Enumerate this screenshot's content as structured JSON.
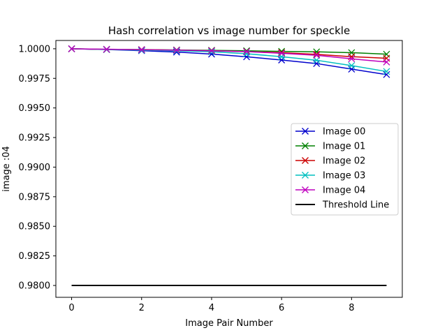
{
  "chart_data": {
    "type": "line",
    "title": "Hash correlation vs image number for speckle",
    "xlabel": "Image Pair Number",
    "ylabel": "image :04",
    "xlim": [
      -0.45,
      9.45
    ],
    "ylim": [
      0.979,
      1.0007
    ],
    "xticks": [
      0,
      2,
      4,
      6,
      8
    ],
    "xtick_labels": [
      "0",
      "2",
      "4",
      "6",
      "8"
    ],
    "yticks": [
      0.98,
      0.9825,
      0.985,
      0.9875,
      0.99,
      0.9925,
      0.995,
      0.9975,
      1.0
    ],
    "ytick_labels": [
      "0.9800",
      "0.9825",
      "0.9850",
      "0.9875",
      "0.9900",
      "0.9925",
      "0.9950",
      "0.9975",
      "1.0000"
    ],
    "grid": false,
    "legend_position": "center-right",
    "x": [
      0,
      1,
      2,
      3,
      4,
      5,
      6,
      7,
      8,
      9
    ],
    "series": [
      {
        "name": "Image 00",
        "color": "#0000cc",
        "marker": "x",
        "values": [
          1.0,
          0.99993,
          0.99984,
          0.99972,
          0.99955,
          0.99932,
          0.99905,
          0.99875,
          0.99828,
          0.99782
        ]
      },
      {
        "name": "Image 01",
        "color": "#008000",
        "marker": "x",
        "values": [
          1.0,
          0.99995,
          0.99993,
          0.9999,
          0.99987,
          0.99983,
          0.99978,
          0.99974,
          0.99967,
          0.99954
        ]
      },
      {
        "name": "Image 02",
        "color": "#cc0000",
        "marker": "x",
        "values": [
          1.0,
          0.99994,
          0.99992,
          0.99988,
          0.99983,
          0.99976,
          0.99967,
          0.99953,
          0.99933,
          0.9992
        ]
      },
      {
        "name": "Image 03",
        "color": "#00bfbf",
        "marker": "x",
        "values": [
          1.0,
          0.99994,
          0.99988,
          0.99983,
          0.99975,
          0.99958,
          0.99933,
          0.99903,
          0.99858,
          0.99808
        ]
      },
      {
        "name": "Image 04",
        "color": "#bf00bf",
        "marker": "x",
        "values": [
          1.0,
          0.99996,
          0.99992,
          0.99988,
          0.99983,
          0.99976,
          0.99962,
          0.99945,
          0.99915,
          0.99888
        ]
      }
    ],
    "threshold": {
      "name": "Threshold Line",
      "color": "#000000",
      "value": 0.98,
      "x_range": [
        0,
        9
      ]
    }
  }
}
